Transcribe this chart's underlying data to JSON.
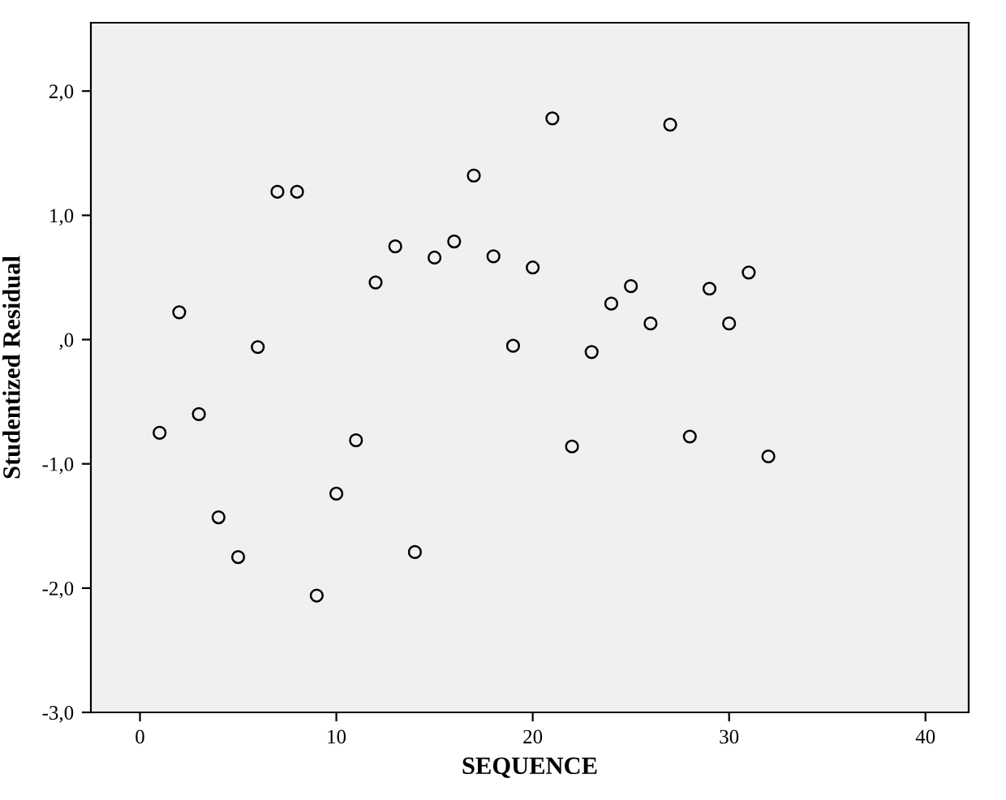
{
  "chart_data": {
    "type": "scatter",
    "xlabel": "SEQUENCE",
    "ylabel": "Studentized Residual",
    "x": [
      1,
      2,
      3,
      4,
      5,
      6,
      7,
      8,
      9,
      10,
      11,
      12,
      13,
      14,
      15,
      16,
      17,
      18,
      19,
      20,
      21,
      22,
      23,
      24,
      25,
      26,
      27,
      28,
      29,
      30,
      31,
      32
    ],
    "values": [
      -0.75,
      0.22,
      -0.6,
      -1.43,
      -1.75,
      -0.06,
      1.19,
      1.19,
      -2.06,
      -1.24,
      -0.81,
      0.46,
      0.75,
      -1.71,
      0.66,
      0.79,
      1.32,
      0.67,
      -0.05,
      0.58,
      1.78,
      -0.86,
      -0.1,
      0.29,
      0.43,
      0.13,
      1.73,
      -0.78,
      0.41,
      0.13,
      0.54,
      -0.94
    ],
    "color": "#000000",
    "marker": "circle",
    "grid": false,
    "xlim": [
      -2.5,
      42.2
    ],
    "xticks": [
      0,
      10,
      20,
      30,
      40
    ],
    "ylim": [
      -3.0,
      2.55
    ],
    "yticks": [
      {
        "value": 2,
        "label": "2,0"
      },
      {
        "value": 1,
        "label": "1,0"
      },
      {
        "value": 0,
        "label": ",0"
      },
      {
        "value": -1,
        "label": "-1,0"
      },
      {
        "value": -2,
        "label": "-2,0"
      },
      {
        "value": -3,
        "label": "-3,0"
      }
    ]
  }
}
